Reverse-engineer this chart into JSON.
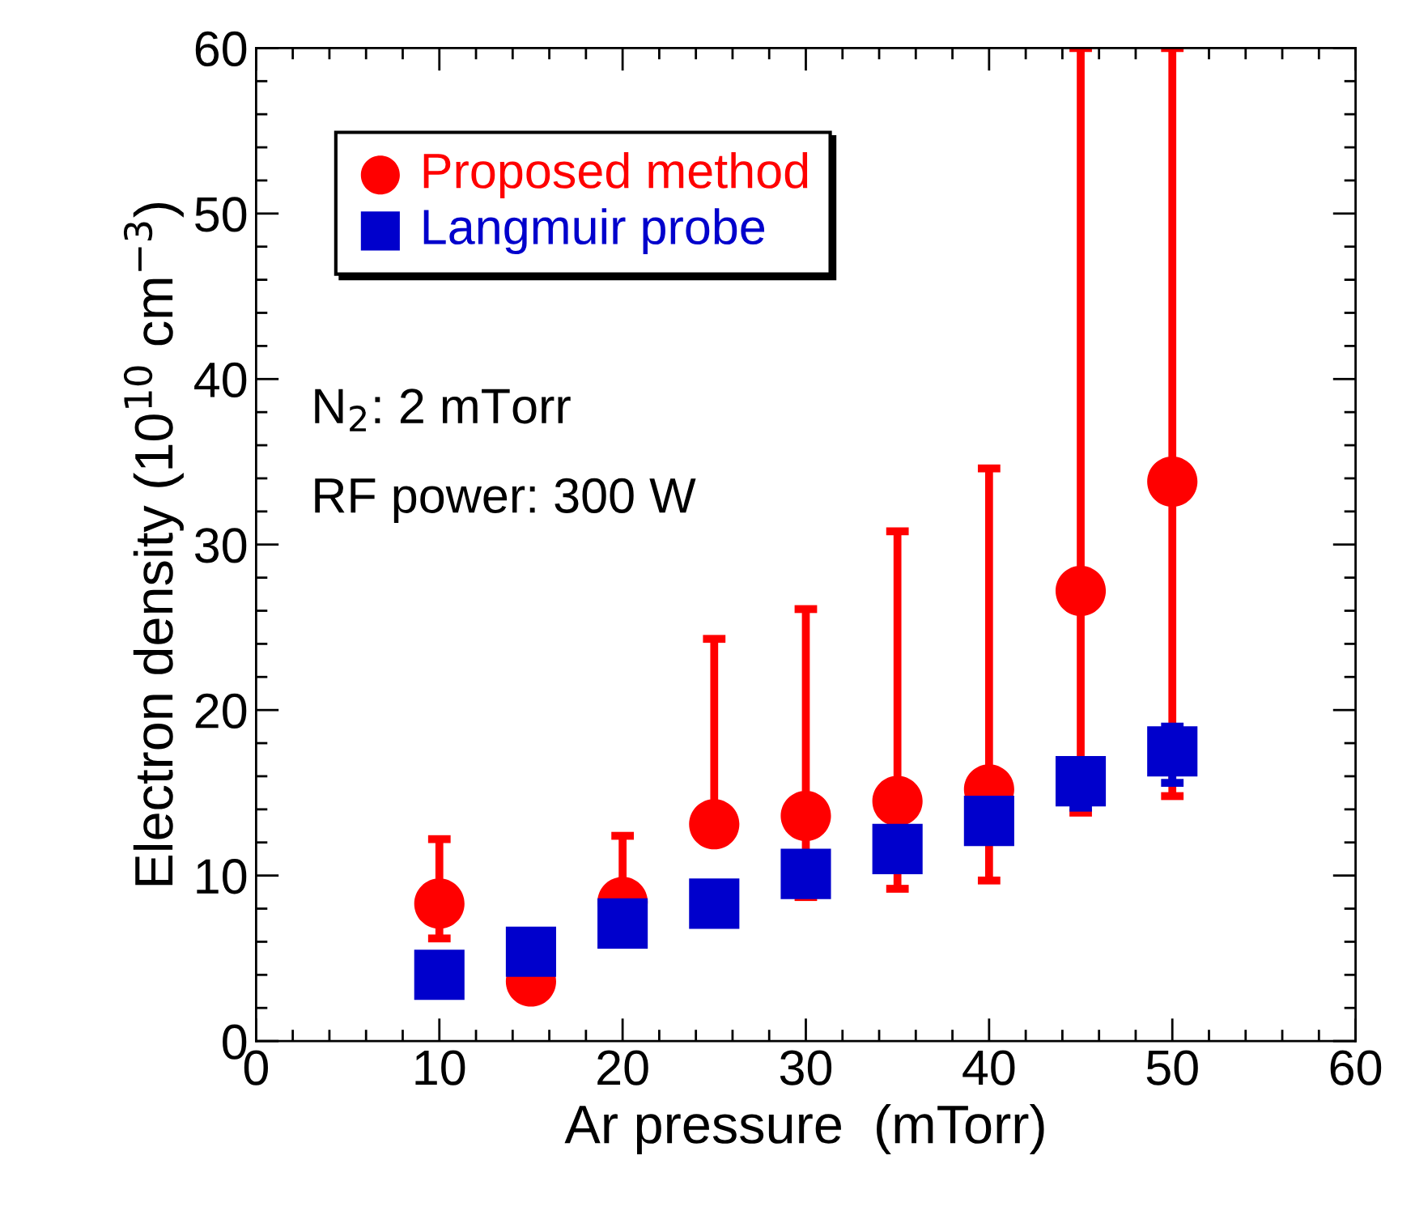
{
  "chart_data": {
    "type": "scatter",
    "xlabel": "Ar pressure  (mTorr)",
    "ylabel": "Electron density (10$^{10}$ cm$^{−3}$)",
    "x": [
      10,
      15,
      20,
      25,
      30,
      35,
      40,
      45,
      50
    ],
    "series": [
      {
        "name": "Proposed method",
        "color": "#ff0000",
        "marker": "circle",
        "values": [
          8.3,
          3.6,
          8.4,
          13.1,
          13.6,
          14.5,
          15.2,
          27.2,
          33.8
        ],
        "errors": [
          [
            6.2,
            12.2
          ],
          null,
          [
            8.4,
            12.4
          ],
          [
            13.1,
            24.3
          ],
          [
            8.7,
            26.1
          ],
          [
            9.2,
            30.8
          ],
          [
            9.7,
            34.6
          ],
          [
            13.8,
            60
          ],
          [
            14.8,
            60
          ]
        ]
      },
      {
        "name": "Langmuir probe",
        "color": "#0000cc",
        "marker": "square",
        "values": [
          4.0,
          5.4,
          7.1,
          8.3,
          10.1,
          11.6,
          13.3,
          15.7,
          17.5
        ],
        "errors": [
          null,
          null,
          null,
          null,
          null,
          null,
          null,
          [
            14.1,
            15.7
          ],
          [
            15.6,
            19.0
          ]
        ]
      }
    ],
    "xlim": [
      0,
      60
    ],
    "xticks": [
      0,
      10,
      20,
      30,
      40,
      50,
      60
    ],
    "ylim": [
      0,
      60
    ],
    "yticks": [
      0,
      10,
      20,
      30,
      40,
      50,
      60
    ],
    "grid": false,
    "legend": "top left",
    "annotations": [
      "N$_{2}$: 2 mTorr",
      "RF power: 300 W"
    ]
  }
}
